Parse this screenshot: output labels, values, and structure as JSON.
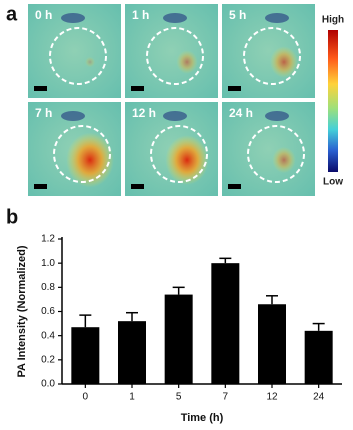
{
  "panel_a": {
    "label": "a",
    "images": [
      {
        "label": "0 h"
      },
      {
        "label": "1 h"
      },
      {
        "label": "5 h"
      },
      {
        "label": "7 h"
      },
      {
        "label": "12 h"
      },
      {
        "label": "24 h"
      }
    ],
    "colorbar": {
      "high": "High",
      "low": "Low"
    }
  },
  "chart_data": {
    "type": "bar",
    "panel_label": "b",
    "x_label": "Time (h)",
    "y_label": "PA Intensity (Normalized)",
    "categories": [
      "0",
      "1",
      "5",
      "7",
      "12",
      "24"
    ],
    "values": [
      0.47,
      0.52,
      0.74,
      1.0,
      0.66,
      0.44
    ],
    "errors": [
      0.1,
      0.07,
      0.06,
      0.04,
      0.07,
      0.06
    ],
    "color": "#000000",
    "ylim": [
      0,
      1.2
    ],
    "yticks": [
      {
        "value": 0,
        "label": "0.0"
      },
      0.2,
      0.4,
      0.6,
      0.8,
      {
        "value": 1,
        "label": "1.0"
      },
      1.2
    ]
  }
}
